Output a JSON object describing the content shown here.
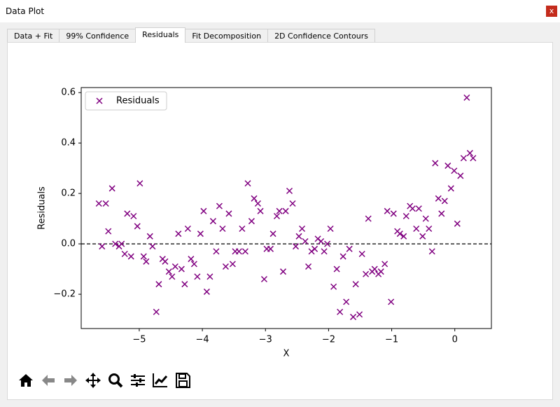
{
  "window": {
    "title": "Data Plot",
    "close": "x",
    "tabs": [
      "Data + Fit",
      "99% Confidence",
      "Residuals",
      "Fit Decomposition",
      "2D Confidence Contours"
    ],
    "active_tab": 2
  },
  "chart_data": {
    "type": "scatter",
    "xlabel": "X",
    "ylabel": "Residuals",
    "series": [
      {
        "name": "Residuals",
        "color": "#800080",
        "x": [
          -5.64,
          -5.59,
          -5.53,
          -5.49,
          -5.43,
          -5.38,
          -5.32,
          -5.28,
          -5.23,
          -5.19,
          -5.13,
          -5.09,
          -5.03,
          -4.99,
          -4.93,
          -4.89,
          -4.83,
          -4.79,
          -4.73,
          -4.69,
          -4.63,
          -4.59,
          -4.53,
          -4.48,
          -4.43,
          -4.38,
          -4.33,
          -4.28,
          -4.23,
          -4.18,
          -4.13,
          -4.08,
          -4.03,
          -3.98,
          -3.93,
          -3.88,
          -3.83,
          -3.78,
          -3.73,
          -3.68,
          -3.63,
          -3.58,
          -3.52,
          -3.48,
          -3.42,
          -3.37,
          -3.32,
          -3.28,
          -3.22,
          -3.18,
          -3.12,
          -3.08,
          -3.02,
          -2.98,
          -2.92,
          -2.88,
          -2.82,
          -2.78,
          -2.72,
          -2.68,
          -2.62,
          -2.57,
          -2.52,
          -2.47,
          -2.42,
          -2.37,
          -2.32,
          -2.27,
          -2.22,
          -2.17,
          -2.12,
          -2.07,
          -2.02,
          -1.97,
          -1.92,
          -1.87,
          -1.82,
          -1.77,
          -1.72,
          -1.67,
          -1.61,
          -1.57,
          -1.51,
          -1.47,
          -1.41,
          -1.37,
          -1.31,
          -1.27,
          -1.21,
          -1.17,
          -1.11,
          -1.07,
          -1.01,
          -0.97,
          -0.91,
          -0.87,
          -0.81,
          -0.77,
          -0.71,
          -0.67,
          -0.61,
          -0.57,
          -0.51,
          -0.46,
          -0.41,
          -0.36,
          -0.31,
          -0.26,
          -0.21,
          -0.16,
          -0.11,
          -0.06,
          -0.01,
          0.04,
          0.09,
          0.14,
          0.19,
          0.24,
          0.29
        ],
        "values": [
          0.16,
          -0.01,
          0.16,
          0.05,
          0.22,
          0.0,
          -0.01,
          0.0,
          -0.04,
          0.12,
          -0.05,
          0.11,
          0.07,
          0.24,
          -0.05,
          -0.07,
          0.03,
          -0.01,
          -0.27,
          -0.16,
          -0.06,
          -0.07,
          -0.11,
          -0.13,
          -0.09,
          0.04,
          -0.1,
          -0.16,
          0.06,
          -0.06,
          -0.08,
          -0.13,
          0.04,
          0.13,
          -0.19,
          -0.13,
          0.09,
          -0.03,
          0.15,
          0.06,
          -0.09,
          0.12,
          -0.08,
          -0.03,
          -0.03,
          0.06,
          -0.03,
          0.24,
          0.09,
          0.18,
          0.16,
          0.13,
          -0.14,
          -0.02,
          -0.02,
          0.04,
          0.11,
          0.13,
          -0.11,
          0.13,
          0.21,
          0.16,
          -0.01,
          0.03,
          0.06,
          0.01,
          -0.09,
          -0.03,
          -0.02,
          0.02,
          0.01,
          -0.03,
          0.0,
          0.06,
          -0.17,
          -0.1,
          -0.27,
          -0.05,
          -0.23,
          -0.02,
          -0.29,
          -0.16,
          -0.28,
          -0.04,
          -0.12,
          0.1,
          -0.11,
          -0.1,
          -0.12,
          -0.11,
          -0.08,
          0.13,
          -0.23,
          0.12,
          0.05,
          0.04,
          0.03,
          0.11,
          0.15,
          0.14,
          0.06,
          0.14,
          0.03,
          0.1,
          0.06,
          -0.03,
          0.32,
          0.18,
          0.12,
          0.17,
          0.31,
          0.22,
          0.29,
          0.08,
          0.27,
          0.34,
          0.58,
          0.36,
          0.34
        ]
      }
    ],
    "reference_line": {
      "y": 0,
      "style": "dashed",
      "color": "#000000"
    },
    "xlim": [
      -5.92,
      0.58
    ],
    "ylim": [
      -0.336,
      0.62
    ],
    "xticks": [
      {
        "value": -5,
        "label": "−5"
      },
      {
        "value": -4,
        "label": "−4"
      },
      {
        "value": -3,
        "label": "−3"
      },
      {
        "value": -2,
        "label": "−2"
      },
      {
        "value": -1,
        "label": "−1"
      },
      {
        "value": 0,
        "label": "0"
      }
    ],
    "yticks": [
      {
        "value": -0.2,
        "label": "−0.2"
      },
      {
        "value": 0,
        "label": "0.0"
      },
      0.2,
      0.4,
      0.6
    ],
    "legend": "upper left",
    "grid": false
  }
}
